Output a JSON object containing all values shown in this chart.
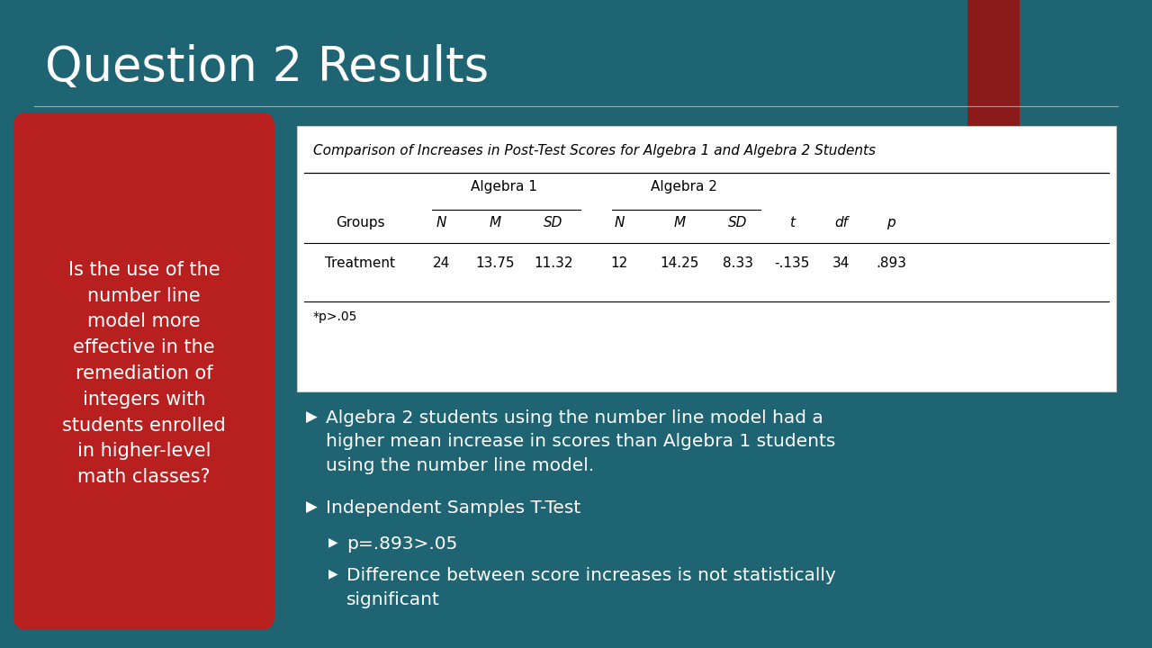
{
  "title": "Question 2 Results",
  "bg_color": "#1e6472",
  "title_color": "#ffffff",
  "title_fontsize": 38,
  "red_box_text": "Is the use of the\nnumber line\nmodel more\neffective in the\nremediation of\nintegers with\nstudents enrolled\nin higher-level\nmath classes?",
  "red_box_color": "#b82020",
  "red_box_text_color": "#ffffff",
  "table_title": "Comparison of Increases in Post-Test Scores for Algebra 1 and Algebra 2 Students",
  "table_bg": "#ffffff",
  "col_headers_bot": [
    "Groups",
    "N",
    "M",
    "SD",
    "N",
    "M",
    "SD",
    "t",
    "df",
    "p"
  ],
  "row_data": [
    "Treatment",
    "24",
    "13.75",
    "11.32",
    "12",
    "14.25",
    "8.33",
    "-.135",
    "34",
    ".893"
  ],
  "footnote": "*p>.05",
  "bullets": [
    "Algebra 2 students using the number line model had a\nhigher mean increase in scores than Algebra 1 students\nusing the number line model.",
    "Independent Samples T-Test"
  ],
  "sub_bullets": [
    "p=.893>.05",
    "Difference between score increases is not statistically\nsignificant"
  ],
  "bullet_color": "#ffffff",
  "bullet_fontsize": 14.5,
  "accent_rect_color": "#8b1a1a"
}
